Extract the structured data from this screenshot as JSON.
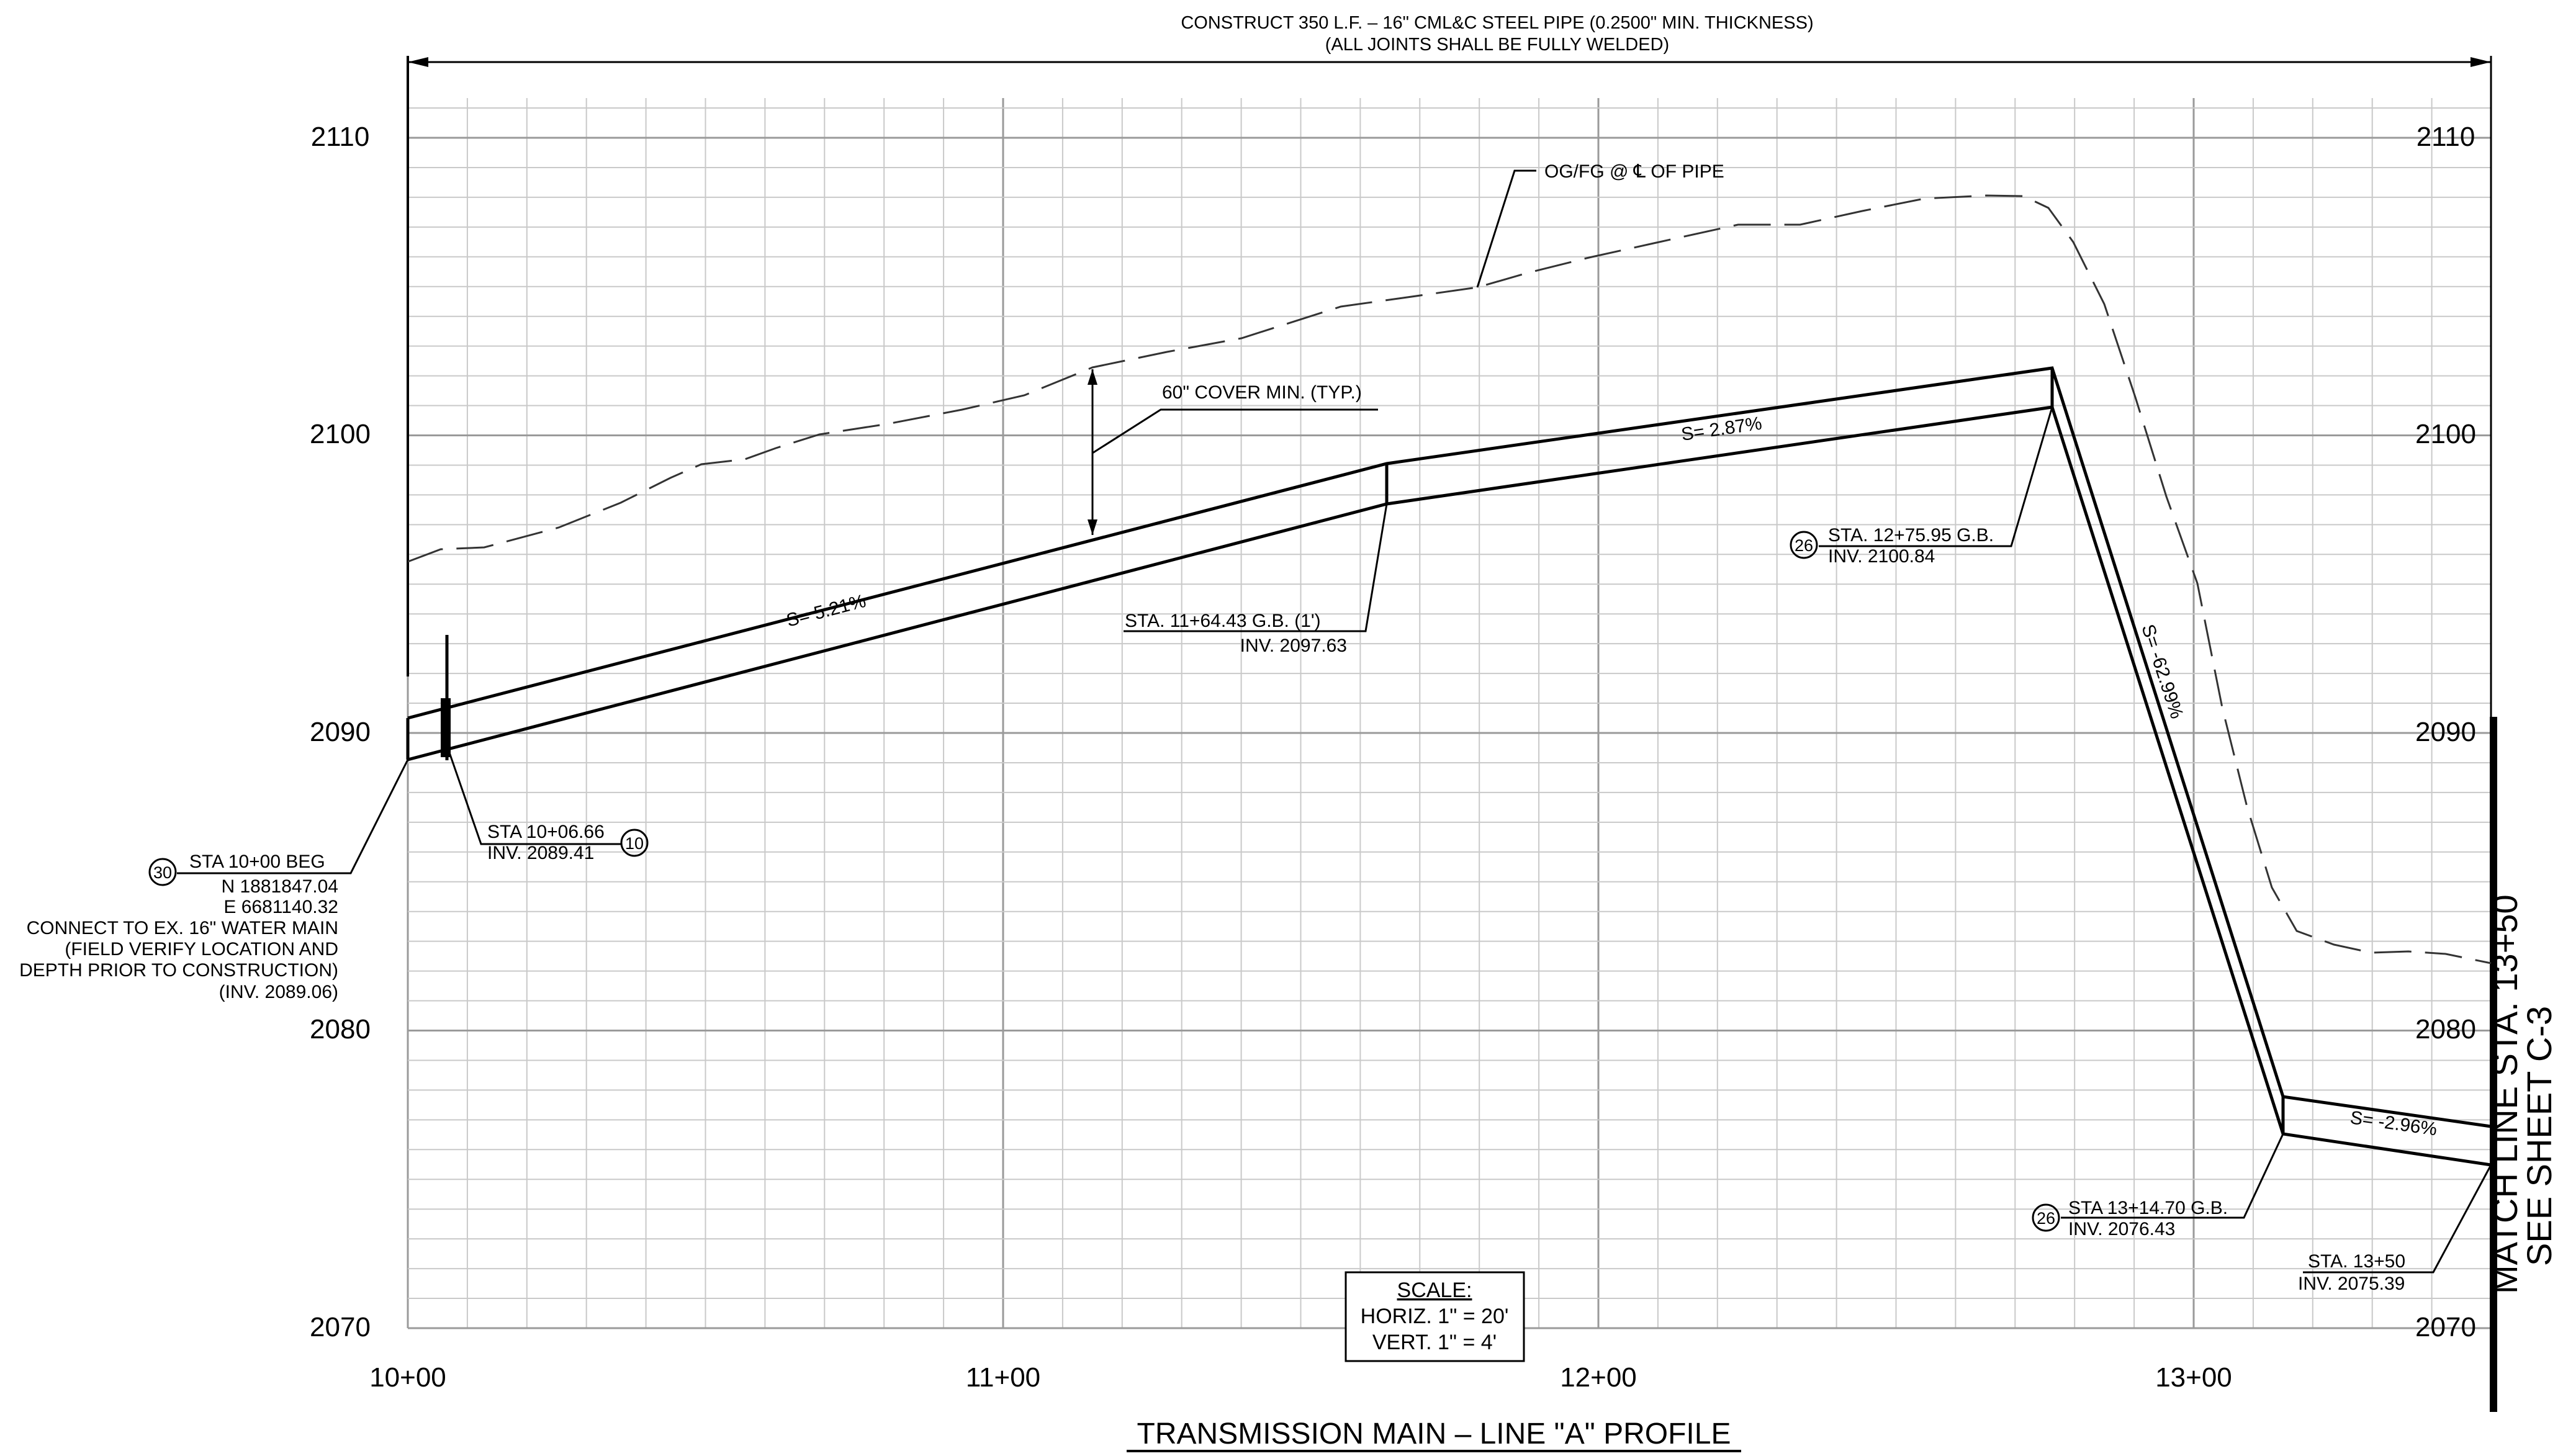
{
  "header": {
    "line1": "CONSTRUCT 350 L.F. – 16\" CML&C STEEL PIPE (0.2500\" MIN. THICKNESS)",
    "line2": "(ALL JOINTS SHALL BE FULLY WELDED)"
  },
  "axes": {
    "elevations": [
      "2070",
      "2080",
      "2090",
      "2100",
      "2110"
    ],
    "stations": [
      "10+00",
      "11+00",
      "12+00",
      "13+00"
    ]
  },
  "callouts": {
    "ground": "OG/FG @ ℄ OF PIPE",
    "cover": "60\" COVER MIN. (TYP.)",
    "slope1": "S= 5.21%",
    "slope2": "S= 2.87%",
    "slope3": "S= -62.99%",
    "slope4": "S= -2.96%",
    "gb1_sta": "STA. 11+64.43 G.B. (1')",
    "gb1_inv": "INV. 2097.63",
    "gb2_num": "26",
    "gb2_sta": "STA. 12+75.95 G.B.",
    "gb2_inv": "INV. 2100.84",
    "gb3_num": "26",
    "gb3_sta": "STA 13+14.70 G.B.",
    "gb3_inv": "INV. 2076.43",
    "end_sta": "STA. 13+50",
    "end_inv": "INV. 2075.39",
    "sta1006_sta": "STA 10+06.66",
    "sta1006_inv": "INV. 2089.41",
    "sta1006_num": "10",
    "beg_num": "30",
    "beg_sta": "STA 10+00 BEG",
    "beg_n": "N 1881847.04",
    "beg_e": "E 6681140.32",
    "beg_l1": "CONNECT TO EX. 16\" WATER MAIN",
    "beg_l2": "(FIELD VERIFY LOCATION AND",
    "beg_l3": "DEPTH PRIOR TO CONSTRUCTION)",
    "beg_l4": "(INV. 2089.06)"
  },
  "scale": {
    "title": "SCALE:",
    "horiz": "HORIZ. 1\" = 20'",
    "vert": "VERT. 1\" = 4'"
  },
  "match_line": {
    "line1": "MATCH LINE STA. 13+50",
    "line2": "SEE SHEET C-3"
  },
  "title": "TRANSMISSION MAIN – LINE \"A\" PROFILE"
}
